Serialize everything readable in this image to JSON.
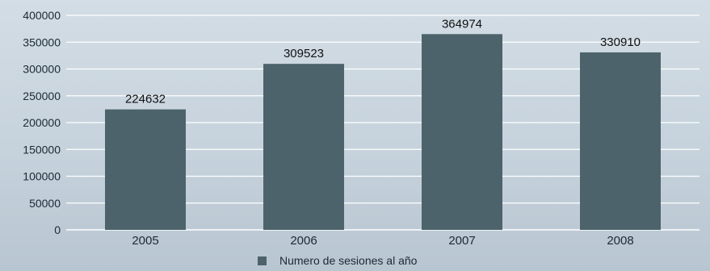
{
  "chart_data": {
    "type": "bar",
    "categories": [
      "2005",
      "2006",
      "2007",
      "2008"
    ],
    "series": [
      {
        "name": "Numero de sesiones al año",
        "values": [
          224632,
          309523,
          364974,
          330910
        ]
      }
    ],
    "data_labels": [
      "224632",
      "309523",
      "364974",
      "330910"
    ],
    "y_ticks": [
      "0",
      "50000",
      "100000",
      "150000",
      "200000",
      "250000",
      "300000",
      "350000",
      "400000"
    ],
    "ylim": [
      0,
      400000
    ],
    "grid": true,
    "legend_position": "bottom-center",
    "colors": {
      "bar": "#4d636c",
      "grid": "#ffffff",
      "background": "#c6d2dc"
    }
  }
}
